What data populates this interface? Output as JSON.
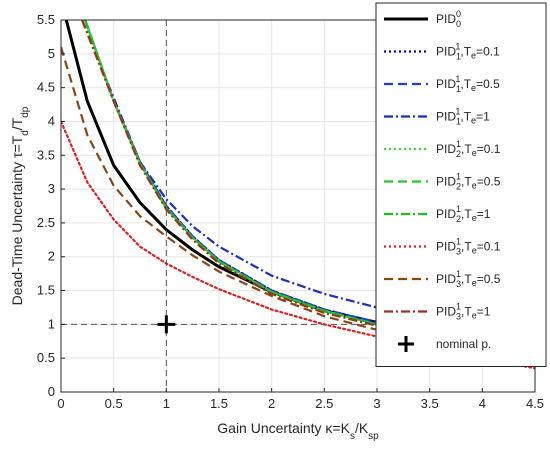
{
  "chart_data": {
    "type": "line",
    "xlabel": "Gain Uncertainty κ=K_s/K_sp",
    "ylabel": "Dead-Time Uncertainty τ=T_d/T_dp",
    "xlim": [
      0,
      4.5
    ],
    "ylim": [
      0,
      5.5
    ],
    "xticks": [
      "0",
      "0.5",
      "1",
      "1.5",
      "2",
      "2.5",
      "3",
      "3.5",
      "4",
      "4.5"
    ],
    "yticks": [
      "0",
      "0.5",
      "1",
      "1.5",
      "2",
      "2.5",
      "3",
      "3.5",
      "4",
      "4.5",
      "5",
      "5.5"
    ],
    "grid": true,
    "legend_position": "top-right",
    "nominal_point": {
      "x": 1,
      "y": 1,
      "label": "nominal p."
    },
    "series": [
      {
        "label": {
          "base": "PID",
          "sup": "0",
          "sub": "0",
          "rest": ""
        },
        "color": "#000000",
        "dash": "solid",
        "x": [
          0.05,
          0.25,
          0.5,
          0.75,
          1,
          1.25,
          1.5,
          2,
          2.5,
          3,
          3.5,
          4,
          4.5
        ],
        "y": [
          5.5,
          4.3,
          3.35,
          2.8,
          2.4,
          2.1,
          1.85,
          1.48,
          1.2,
          1.03,
          0.9,
          0.8,
          0.7
        ]
      },
      {
        "label": {
          "base": "PID",
          "sup": "1",
          "sub": "1",
          "rest": ",T_e=0.1"
        },
        "color": "#0000b3",
        "dash": "dot",
        "x": [
          0.23,
          0.5,
          0.75,
          1,
          1.25,
          1.5,
          2,
          2.5,
          3,
          3.5,
          4,
          4.5
        ],
        "y": [
          5.5,
          4.3,
          3.4,
          2.75,
          2.3,
          1.95,
          1.5,
          1.22,
          1.03,
          0.88,
          0.75,
          0.62
        ]
      },
      {
        "label": {
          "base": "PID",
          "sup": "1",
          "sub": "1",
          "rest": ",T_e=0.5"
        },
        "color": "#1e3ad8",
        "dash": "dash",
        "x": [
          0.23,
          0.5,
          0.75,
          1,
          1.25,
          1.5,
          2,
          2.5,
          3,
          3.5,
          4,
          4.5
        ],
        "y": [
          5.5,
          4.3,
          3.4,
          2.75,
          2.3,
          1.95,
          1.5,
          1.22,
          1.03,
          0.88,
          0.75,
          0.62
        ]
      },
      {
        "label": {
          "base": "PID",
          "sup": "1",
          "sub": "1",
          "rest": ",T_e=1"
        },
        "color": "#1a2fc8",
        "dash": "dashdot",
        "x": [
          0.2,
          0.5,
          0.75,
          1,
          1.25,
          1.5,
          2,
          2.5,
          3,
          3.5,
          4,
          4.5
        ],
        "y": [
          5.5,
          4.35,
          3.4,
          2.85,
          2.45,
          2.15,
          1.72,
          1.45,
          1.25,
          1.1,
          1.0,
          0.93
        ]
      },
      {
        "label": {
          "base": "PID",
          "sup": "1",
          "sub": "2",
          "rest": ",T_e=0.1"
        },
        "color": "#33dd33",
        "dash": "dot",
        "x": [
          0.23,
          0.5,
          0.75,
          1,
          1.25,
          1.5,
          2,
          2.5,
          3,
          3.5,
          4,
          4.5
        ],
        "y": [
          5.5,
          4.3,
          3.38,
          2.72,
          2.28,
          1.93,
          1.48,
          1.2,
          1.0,
          0.86,
          0.73,
          0.6
        ]
      },
      {
        "label": {
          "base": "PID",
          "sup": "1",
          "sub": "2",
          "rest": ",T_e=0.5"
        },
        "color": "#22cc22",
        "dash": "dash",
        "x": [
          0.23,
          0.5,
          0.75,
          1,
          1.25,
          1.5,
          2,
          2.5,
          3,
          3.5,
          4,
          4.5
        ],
        "y": [
          5.5,
          4.3,
          3.38,
          2.72,
          2.28,
          1.93,
          1.48,
          1.2,
          1.0,
          0.86,
          0.73,
          0.6
        ]
      },
      {
        "label": {
          "base": "PID",
          "sup": "1",
          "sub": "2",
          "rest": ",T_e=1"
        },
        "color": "#1fbf1f",
        "dash": "dashdot",
        "x": [
          0.23,
          0.5,
          0.75,
          1,
          1.25,
          1.5,
          2,
          2.5,
          3,
          3.5,
          4,
          4.5
        ],
        "y": [
          5.5,
          4.3,
          3.38,
          2.72,
          2.28,
          1.93,
          1.48,
          1.2,
          1.0,
          0.86,
          0.73,
          0.6
        ]
      },
      {
        "label": {
          "base": "PID",
          "sup": "1",
          "sub": "3",
          "rest": ",T_e=0.1"
        },
        "color": "#e02020",
        "dash": "dot",
        "x": [
          0,
          0.25,
          0.5,
          0.75,
          1,
          1.25,
          1.5,
          2,
          2.5,
          3,
          3.5,
          4,
          4.5
        ],
        "y": [
          4.0,
          3.1,
          2.55,
          2.15,
          1.9,
          1.7,
          1.52,
          1.22,
          1.0,
          0.82,
          0.65,
          0.5,
          0.35
        ]
      },
      {
        "label": {
          "base": "PID",
          "sup": "1",
          "sub": "3",
          "rest": ",T_e=0.5"
        },
        "color": "#8b4513",
        "dash": "dash",
        "x": [
          0,
          0.25,
          0.5,
          0.75,
          1,
          1.25,
          1.5,
          2,
          2.5,
          3,
          3.5,
          4,
          4.5
        ],
        "y": [
          5.1,
          3.8,
          3.05,
          2.6,
          2.3,
          2.02,
          1.78,
          1.42,
          1.12,
          0.92,
          0.75,
          0.6,
          0.48
        ]
      },
      {
        "label": {
          "base": "PID",
          "sup": "1",
          "sub": "3",
          "rest": ",T_e=1"
        },
        "color": "#a0301a",
        "dash": "dashdot",
        "x": [
          0.2,
          0.5,
          0.75,
          1,
          1.25,
          1.5,
          2,
          2.5,
          3,
          3.5,
          4,
          4.5
        ],
        "y": [
          5.5,
          4.3,
          3.35,
          2.7,
          2.25,
          1.9,
          1.45,
          1.17,
          0.98,
          0.84,
          0.72,
          0.6
        ]
      }
    ]
  }
}
